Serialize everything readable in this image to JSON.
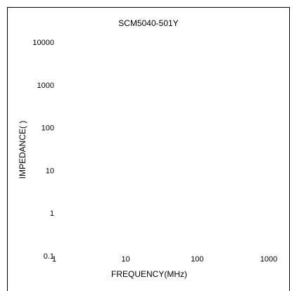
{
  "chart_data": {
    "type": "line",
    "title": "SCM5040-501Y",
    "xlabel": "FREQUENCY(MHz)",
    "ylabel": "IMPEDANCE(   )",
    "x_scale": "log",
    "y_scale": "log",
    "xlim": [
      1,
      1000
    ],
    "ylim": [
      0.1,
      10000
    ],
    "x_ticks": [
      {
        "value": 1,
        "label": "1"
      },
      {
        "value": 10,
        "label": "10"
      },
      {
        "value": 100,
        "label": "100"
      },
      {
        "value": 1000,
        "label": "1000"
      }
    ],
    "y_ticks": [
      {
        "value": 0.1,
        "label": "0.1"
      },
      {
        "value": 1,
        "label": "1"
      },
      {
        "value": 10,
        "label": "10"
      },
      {
        "value": 100,
        "label": "100"
      },
      {
        "value": 1000,
        "label": "1000"
      },
      {
        "value": 10000,
        "label": "10000"
      }
    ],
    "grid": false,
    "series": []
  }
}
